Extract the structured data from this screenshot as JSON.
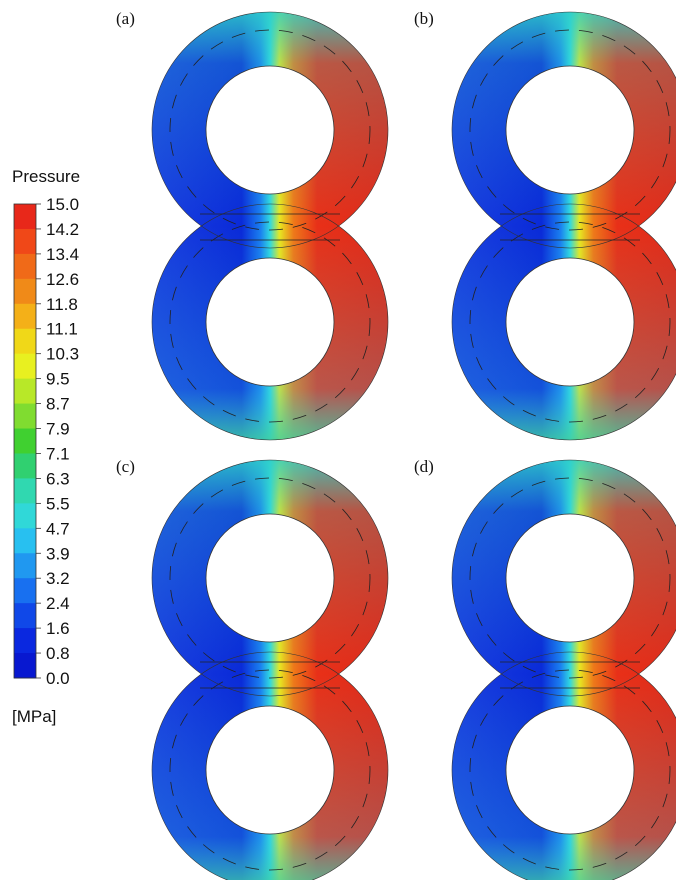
{
  "colorbar": {
    "title": "Pressure",
    "ticks": [
      "15.0",
      "14.2",
      "13.4",
      "12.6",
      "11.8",
      "11.1",
      "10.3",
      "9.5",
      "8.7",
      "7.9",
      "7.1",
      "6.3",
      "5.5",
      "4.7",
      "3.9",
      "3.2",
      "2.4",
      "1.6",
      "0.8",
      "0.0"
    ],
    "unit": "[MPa]"
  },
  "panels": [
    {
      "label": "(a)"
    },
    {
      "label": "(b)"
    },
    {
      "label": "(c)"
    },
    {
      "label": "(d)"
    }
  ]
}
